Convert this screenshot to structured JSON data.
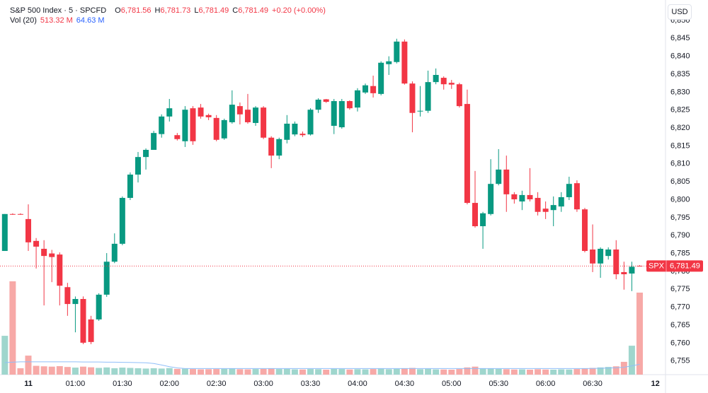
{
  "header": {
    "symbol": "S&P 500 Index · 5 · SPCFD",
    "ohlc": [
      {
        "key": "O",
        "value": "6,781.56"
      },
      {
        "key": "H",
        "value": "6,781.73"
      },
      {
        "key": "L",
        "value": "6,781.49"
      },
      {
        "key": "C",
        "value": "6,781.49"
      }
    ],
    "change": "+0.20 (+0.00%)",
    "volume_name": "Vol (20)",
    "volume_value": "513.32 M",
    "volume_ma": "64.63 M",
    "currency": "USD"
  },
  "chart_data": {
    "type": "candlestick",
    "up_color": "#089981",
    "down_color": "#f23645",
    "volume_up_color": "#9fd6cd",
    "volume_down_color": "#f7a9a7",
    "ma_color": "#90bff9",
    "categories": [
      null,
      null,
      null,
      "11",
      null,
      null,
      null,
      null,
      null,
      "01:00",
      null,
      null,
      null,
      null,
      null,
      "01:30",
      null,
      null,
      null,
      null,
      null,
      "02:00",
      null,
      null,
      null,
      null,
      null,
      "02:30",
      null,
      null,
      null,
      null,
      null,
      "03:00",
      null,
      null,
      null,
      null,
      null,
      "03:30",
      null,
      null,
      null,
      null,
      null,
      "04:00",
      null,
      null,
      null,
      null,
      null,
      "04:30",
      null,
      null,
      null,
      null,
      null,
      "05:00",
      null,
      null,
      null,
      null,
      null,
      "05:30",
      null,
      null,
      null,
      null,
      null,
      "06:00",
      null,
      null,
      null,
      null,
      null,
      "06:30",
      null,
      null,
      null,
      null,
      null,
      null,
      null,
      "12"
    ],
    "open": [
      6785.7,
      6796,
      6796,
      6794.6,
      6788.5,
      6786.3,
      6785,
      6784.7,
      6775.6,
      6770.9,
      6772.3,
      6766.6,
      6766.6,
      6773.5,
      6782.7,
      6787.7,
      6800.5,
      6807,
      6811.9,
      6813.9,
      6818.3,
      6823.2,
      6818,
      6816.3,
      6825.5,
      6825.7,
      6823.6,
      6822.8,
      6817.1,
      6821.6,
      6826.1,
      6825.1,
      6821.4,
      6825.7,
      6817.3,
      6812.3,
      6816.7,
      6818.2,
      6818.4,
      6818.2,
      6825.1,
      6828,
      6820.6,
      6820.2,
      6827.5,
      6825.7,
      6829.9,
      6831.7,
      6829.5,
      6837.8,
      6838.4,
      6844.1,
      6832.4,
      6824.6,
      6824.8,
      6832.8,
      6834,
      6832.6,
      6832.2,
      6826.7,
      6799.1,
      6792.6,
      6796,
      6804.4,
      6808.4,
      6801.5,
      6799.5,
      6801.3,
      6800.5,
      6797.5,
      6797.1,
      6798.1,
      6800.7,
      6804.6,
      6797.3,
      6786.1,
      6782.2,
      6784.3,
      6786.1,
      6779.8,
      6779.4,
      6781.56,
      null,
      null
    ],
    "high": [
      6796,
      6796.2,
      6796.2,
      6798.7,
      6789.3,
      6788.7,
      6786,
      6785.3,
      6776.8,
      6773,
      6773,
      6767.6,
      6773.9,
      6785.1,
      6790.6,
      6800.9,
      6807.6,
      6813.3,
      6814.3,
      6819.2,
      6823.8,
      6828.1,
      6818.6,
      6826.1,
      6826.1,
      6826.7,
      6824,
      6823.6,
      6822.6,
      6830.5,
      6827.1,
      6829.5,
      6826.1,
      6826.1,
      6817.7,
      6817.3,
      6823.6,
      6821.8,
      6819,
      6825.5,
      6828.3,
      6828.1,
      6828.1,
      6828.1,
      6827.7,
      6831.1,
      6832.4,
      6834.6,
      6838.6,
      6840,
      6844.9,
      6844.7,
      6833,
      6831.7,
      6836,
      6836.6,
      6834.4,
      6833.4,
      6832.6,
      6830.7,
      6808,
      6796.6,
      6811.3,
      6814.1,
      6812.3,
      6802.1,
      6802.5,
      6808.8,
      6802.1,
      6799.5,
      6800.9,
      6802.1,
      6806.4,
      6805.4,
      6797.7,
      6793.1,
      6786.7,
      6786.7,
      6788.7,
      6782.7,
      6782.7,
      6781.73,
      null,
      null
    ],
    "low": [
      6785.7,
      6795.8,
      6795.8,
      6785.7,
      6780.8,
      6770.5,
      6777,
      6770.5,
      6767.6,
      6763,
      6759.7,
      6759.7,
      6766.2,
      6772.9,
      6782.3,
      6787.3,
      6799.9,
      6804.8,
      6808.4,
      6813.9,
      6817.3,
      6821.8,
      6816.5,
      6814.7,
      6815.3,
      6822.6,
      6822.2,
      6816.3,
      6816.7,
      6821.2,
      6821,
      6821.2,
      6820.6,
      6816.9,
      6808.8,
      6811.3,
      6815.7,
      6817.7,
      6817.5,
      6817.9,
      6824.2,
      6827,
      6818.3,
      6819.8,
      6825.1,
      6824.6,
      6829.5,
      6828.5,
      6829.1,
      6834.8,
      6838,
      6832.1,
      6818.8,
      6823.2,
      6824.2,
      6832.2,
      6830.7,
      6830.9,
      6825.7,
      6798.7,
      6792.2,
      6786.3,
      6795.6,
      6804,
      6796.6,
      6798.9,
      6797.1,
      6799.5,
      6795.6,
      6794.6,
      6792.6,
      6796.6,
      6799.9,
      6796.6,
      6785.3,
      6779.8,
      6778.2,
      6783.3,
      6777.8,
      6774.9,
      6774.5,
      6781.49,
      null,
      null
    ],
    "close": [
      6796,
      6795.9,
      6795.9,
      6788.1,
      6786.9,
      6784.3,
      6784,
      6776,
      6770.9,
      6772.3,
      6760.1,
      6760.3,
      6773.5,
      6782.7,
      6787.7,
      6800.5,
      6807,
      6811.9,
      6813.9,
      6818.6,
      6823.2,
      6825.5,
      6816.9,
      6825.1,
      6816.3,
      6823.2,
      6823,
      6816.7,
      6822.2,
      6826.5,
      6823.8,
      6821.6,
      6825.7,
      6817.3,
      6812.3,
      6816.9,
      6821.2,
      6821.2,
      6818,
      6825.1,
      6827.9,
      6827.3,
      6827.5,
      6827.5,
      6825.5,
      6830.5,
      6831.9,
      6829.7,
      6838.2,
      6838.6,
      6844.1,
      6832.4,
      6824.2,
      6824.8,
      6832.8,
      6834.8,
      6832.2,
      6832.1,
      6826.1,
      6799.1,
      6792.6,
      6796.2,
      6804.4,
      6808.4,
      6801.5,
      6800.1,
      6801.3,
      6800.1,
      6796.6,
      6796.6,
      6798.5,
      6800.7,
      6804.4,
      6797.3,
      6785.7,
      6782.2,
      6786.3,
      6786.1,
      6779.2,
      6779.2,
      6781.3,
      6781.49,
      null,
      null
    ],
    "volume": [
      243,
      584,
      40,
      119,
      55,
      52,
      50,
      53,
      48,
      44,
      50,
      46,
      42,
      45,
      40,
      44,
      42,
      40,
      38,
      40,
      38,
      41,
      36,
      37,
      35,
      33,
      34,
      35,
      36,
      38,
      34,
      33,
      35,
      36,
      38,
      35,
      36,
      33,
      32,
      35,
      34,
      31,
      36,
      35,
      32,
      34,
      33,
      35,
      37,
      34,
      36,
      40,
      42,
      34,
      36,
      33,
      32,
      31,
      35,
      45,
      50,
      40,
      38,
      36,
      34,
      32,
      33,
      31,
      34,
      32,
      31,
      33,
      32,
      35,
      38,
      42,
      45,
      48,
      52,
      80,
      181,
      513.32,
      null,
      null
    ],
    "volume_ma": [
      75,
      78,
      80,
      80,
      80,
      80,
      80,
      80,
      80,
      80,
      79,
      79,
      79,
      78,
      78,
      77,
      76,
      75,
      74,
      70,
      60,
      50,
      42,
      38,
      38,
      38,
      38,
      38,
      38,
      38,
      38,
      38,
      38,
      38,
      38,
      38,
      38,
      38,
      38,
      38,
      38,
      38,
      38,
      38,
      38,
      38,
      38,
      38,
      38,
      38,
      38,
      38,
      38,
      38,
      38,
      38,
      38,
      38,
      38,
      38,
      38,
      38,
      38,
      38,
      38,
      38,
      38,
      38,
      38,
      38,
      38,
      38,
      38,
      38,
      38,
      39,
      40,
      41,
      43,
      46,
      55,
      64.63,
      null,
      null
    ],
    "ylim": [
      6751.2,
      6855.7
    ],
    "yticks": [
      {
        "value": 6755,
        "label": "6,755"
      },
      {
        "value": 6760,
        "label": "6,760"
      },
      {
        "value": 6765,
        "label": "6,765"
      },
      {
        "value": 6770,
        "label": "6,770"
      },
      {
        "value": 6775,
        "label": "6,775"
      },
      {
        "value": 6780,
        "label": "6,780"
      },
      {
        "value": 6785,
        "label": "6,785"
      },
      {
        "value": 6790,
        "label": "6,790"
      },
      {
        "value": 6795,
        "label": "6,795"
      },
      {
        "value": 6800,
        "label": "6,800"
      },
      {
        "value": 6805,
        "label": "6,805"
      },
      {
        "value": 6810,
        "label": "6,810"
      },
      {
        "value": 6815,
        "label": "6,815"
      },
      {
        "value": 6820,
        "label": "6,820"
      },
      {
        "value": 6825,
        "label": "6,825"
      },
      {
        "value": 6830,
        "label": "6,830"
      },
      {
        "value": 6835,
        "label": "6,835"
      },
      {
        "value": 6840,
        "label": "6,840"
      },
      {
        "value": 6845,
        "label": "6,845"
      },
      {
        "value": 6850,
        "label": "6,850"
      }
    ],
    "last_price": {
      "symbol": "SPX",
      "value": 6781.49,
      "label": "6,781.49"
    }
  }
}
